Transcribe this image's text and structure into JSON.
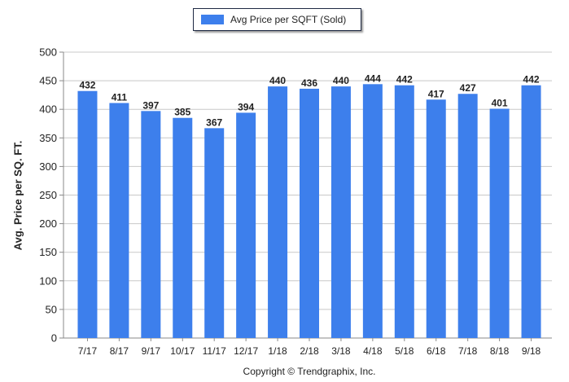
{
  "legend": {
    "label": "Avg Price per SQFT (Sold)"
  },
  "footer": {
    "copyright": "Copyright © Trendgraphix, Inc."
  },
  "colors": {
    "bar": "#3d7fec",
    "grid": "#c8c8c8",
    "axis": "#8a8a8a",
    "text": "#222222"
  },
  "chart_data": {
    "type": "bar",
    "categories": [
      "7/17",
      "8/17",
      "9/17",
      "10/17",
      "11/17",
      "12/17",
      "1/18",
      "2/18",
      "3/18",
      "4/18",
      "5/18",
      "6/18",
      "7/18",
      "8/18",
      "9/18"
    ],
    "series": [
      {
        "name": "Avg Price per SQFT (Sold)",
        "values": [
          432,
          411,
          397,
          385,
          367,
          394,
          440,
          436,
          440,
          444,
          442,
          417,
          427,
          401,
          442
        ]
      }
    ],
    "ylabel": "Avg. Price per SQ. FT.",
    "xlabel": "",
    "ylim": [
      0,
      500
    ],
    "yticks": [
      0,
      50,
      100,
      150,
      200,
      250,
      300,
      350,
      400,
      450,
      500
    ],
    "grid": true,
    "legend_position": "top-center",
    "data_labels": true
  }
}
